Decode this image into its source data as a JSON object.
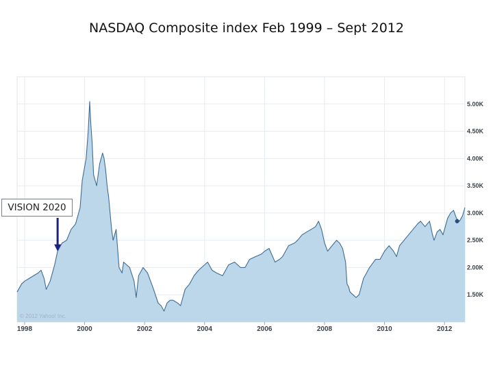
{
  "title": "NASDAQ Composite index Feb 1999 – Sept 2012",
  "callout": {
    "label": "VISION 2020"
  },
  "watermark": "© 2012 Yahoo! Inc.",
  "colors": {
    "fill": "#bcd7ea",
    "line": "#3f6b92",
    "grid": "#e6ebf0",
    "arrow": "#1a237e",
    "marker": "#1f4e79"
  },
  "chart_data": {
    "type": "area",
    "title": "NASDAQ Composite index Feb 1999 – Sept 2012",
    "xlabel": "",
    "ylabel": "",
    "xlim": [
      1997.75,
      2012.68
    ],
    "ylim": [
      1000,
      5500
    ],
    "x_ticks": [
      1998,
      2000,
      2002,
      2004,
      2006,
      2008,
      2010,
      2012
    ],
    "x_tick_labels": [
      "1998",
      "2000",
      "2002",
      "2004",
      "2006",
      "2008",
      "2010",
      "2012"
    ],
    "y_ticks": [
      1500,
      2000,
      2500,
      3000,
      3500,
      4000,
      4500,
      5000
    ],
    "y_tick_labels": [
      "1.50K",
      "2.00K",
      "2.50K",
      "3.00K",
      "3.50K",
      "4.00K",
      "4.50K",
      "5.00K"
    ],
    "annotation": {
      "label": "VISION 2020",
      "x": 1999.1,
      "y": 2300
    },
    "marker": {
      "x": 2012.42,
      "y": 2850
    },
    "series": [
      {
        "name": "NASDAQ Composite",
        "x": [
          1997.75,
          1997.9,
          1998.0,
          1998.15,
          1998.3,
          1998.45,
          1998.55,
          1998.65,
          1998.72,
          1998.85,
          1999.0,
          1999.1,
          1999.25,
          1999.4,
          1999.55,
          1999.7,
          1999.85,
          1999.92,
          2000.05,
          2000.12,
          2000.17,
          2000.2,
          2000.25,
          2000.3,
          2000.4,
          2000.5,
          2000.6,
          2000.65,
          2000.7,
          2000.75,
          2000.8,
          2000.9,
          2000.95,
          2001.05,
          2001.15,
          2001.25,
          2001.3,
          2001.4,
          2001.5,
          2001.65,
          2001.72,
          2001.8,
          2001.95,
          2002.1,
          2002.2,
          2002.3,
          2002.45,
          2002.55,
          2002.65,
          2002.75,
          2002.85,
          2002.95,
          2003.1,
          2003.2,
          2003.35,
          2003.5,
          2003.65,
          2003.8,
          2004.0,
          2004.1,
          2004.25,
          2004.4,
          2004.6,
          2004.8,
          2005.0,
          2005.2,
          2005.35,
          2005.5,
          2005.7,
          2005.9,
          2006.0,
          2006.15,
          2006.35,
          2006.5,
          2006.6,
          2006.8,
          2007.0,
          2007.1,
          2007.25,
          2007.4,
          2007.55,
          2007.7,
          2007.8,
          2007.9,
          2008.0,
          2008.1,
          2008.25,
          2008.4,
          2008.5,
          2008.6,
          2008.7,
          2008.75,
          2008.8,
          2008.85,
          2008.95,
          2009.05,
          2009.15,
          2009.3,
          2009.5,
          2009.7,
          2009.85,
          2010.0,
          2010.15,
          2010.3,
          2010.4,
          2010.5,
          2010.65,
          2010.8,
          2010.95,
          2011.1,
          2011.2,
          2011.35,
          2011.5,
          2011.6,
          2011.65,
          2011.75,
          2011.85,
          2011.95,
          2012.1,
          2012.2,
          2012.3,
          2012.4,
          2012.5,
          2012.6,
          2012.68
        ],
        "values": [
          1550,
          1700,
          1750,
          1800,
          1850,
          1900,
          1950,
          1800,
          1600,
          1750,
          2050,
          2300,
          2450,
          2500,
          2700,
          2800,
          3100,
          3600,
          4000,
          4500,
          5048,
          4700,
          4300,
          3700,
          3500,
          3900,
          4100,
          4000,
          3800,
          3500,
          3300,
          2700,
          2500,
          2700,
          2000,
          1900,
          2100,
          2050,
          2000,
          1750,
          1450,
          1850,
          2000,
          1900,
          1750,
          1600,
          1350,
          1300,
          1200,
          1350,
          1400,
          1400,
          1350,
          1300,
          1600,
          1700,
          1850,
          1950,
          2050,
          2100,
          1950,
          1900,
          1850,
          2050,
          2100,
          2000,
          2000,
          2150,
          2200,
          2250,
          2300,
          2350,
          2100,
          2150,
          2200,
          2400,
          2450,
          2500,
          2600,
          2650,
          2700,
          2750,
          2850,
          2700,
          2450,
          2300,
          2400,
          2500,
          2450,
          2350,
          2100,
          1700,
          1650,
          1550,
          1500,
          1450,
          1500,
          1800,
          2000,
          2150,
          2150,
          2300,
          2400,
          2300,
          2200,
          2400,
          2500,
          2600,
          2700,
          2800,
          2850,
          2750,
          2850,
          2600,
          2500,
          2650,
          2700,
          2600,
          2900,
          3000,
          3050,
          2900,
          2850,
          2950,
          3100
        ]
      }
    ]
  }
}
